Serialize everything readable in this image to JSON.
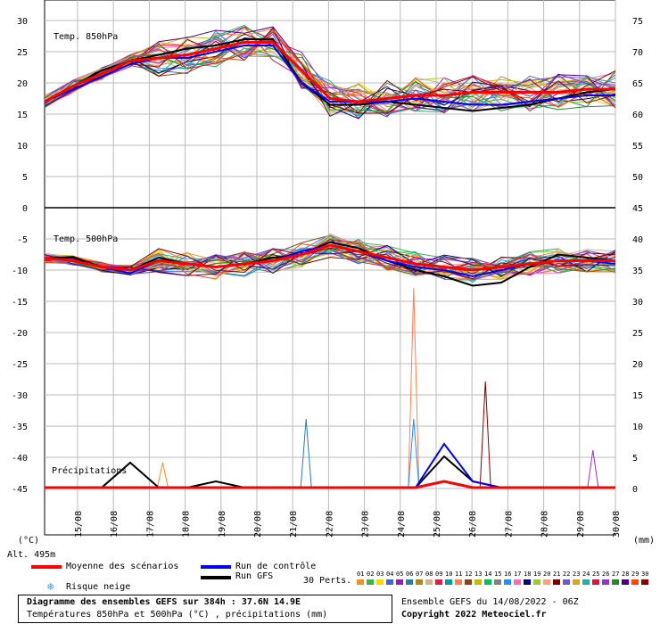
{
  "chart_data": {
    "type": "line",
    "title": "Diagramme des ensembles GEFS sur 384h : 37.6N 14.9E",
    "subtitle": "Températures 850hPa et 500hPa (°C) , précipitations (mm)",
    "x_labels": [
      "15/08",
      "16/08",
      "17/08",
      "18/08",
      "19/08",
      "20/08",
      "21/08",
      "22/08",
      "23/08",
      "24/08",
      "25/08",
      "26/08",
      "27/08",
      "28/08",
      "29/08",
      "30/08"
    ],
    "left_axis": {
      "unit": "(°C)",
      "ticks": [
        30,
        25,
        20,
        15,
        10,
        5,
        0,
        -5,
        -10,
        -15,
        -20,
        -25,
        -30,
        -35,
        -40,
        -45
      ]
    },
    "right_axis": {
      "unit": "(mm)",
      "ticks_upper": [
        75,
        70,
        65,
        60,
        55,
        50
      ],
      "ticks_lower": [
        45,
        40,
        35,
        30,
        25,
        20,
        15,
        10,
        5,
        0
      ]
    },
    "panel_labels": {
      "t850": "Temp. 850hPa",
      "t500": "Temp. 500hPa",
      "precip": "Précipitations"
    },
    "grid": true,
    "series": [
      {
        "name": "Moyenne des scénarios",
        "color": "#ff0000",
        "t850": [
          17,
          19.5,
          21.5,
          23.5,
          24,
          24.5,
          25.5,
          26.5,
          26.5,
          22,
          17.5,
          17,
          17.5,
          18,
          18,
          18.5,
          18.5,
          18.5,
          18.5,
          19,
          19
        ],
        "t500": [
          -8,
          -8.5,
          -9.5,
          -10,
          -8.5,
          -9,
          -9.5,
          -9,
          -8.5,
          -7.5,
          -6,
          -7,
          -8,
          -9,
          -9.5,
          -10,
          -9.5,
          -9,
          -8.5,
          -8.5,
          -8.5
        ],
        "precip": [
          0,
          0,
          0,
          0,
          0,
          0,
          0,
          0,
          0,
          0,
          0,
          0,
          0,
          0,
          1,
          0,
          0,
          0,
          0,
          0,
          0
        ]
      },
      {
        "name": "Run de contrôle",
        "color": "#0000ff",
        "t850": [
          17,
          19,
          21,
          23,
          24,
          24,
          25,
          26,
          26,
          20,
          17,
          17,
          17,
          17.5,
          17,
          16.5,
          16.5,
          17,
          17.5,
          18,
          18
        ],
        "t500": [
          -8,
          -8.5,
          -9.5,
          -10.5,
          -8.5,
          -9,
          -9.5,
          -9,
          -8.5,
          -7,
          -6,
          -7,
          -8.5,
          -9.5,
          -10,
          -11,
          -10,
          -9,
          -8.5,
          -8.5,
          -9
        ],
        "precip": [
          0,
          0,
          0,
          0,
          0,
          0,
          0,
          0,
          0,
          0,
          0,
          0,
          0,
          0,
          7,
          1,
          0,
          0,
          0,
          0,
          0
        ]
      },
      {
        "name": "Run GFS",
        "color": "#000000",
        "t850": [
          17,
          19.5,
          22,
          23.5,
          24.5,
          25.5,
          26,
          27,
          27,
          20,
          16.5,
          16.5,
          17,
          16.5,
          16,
          15.5,
          16,
          16.5,
          17.5,
          18.5,
          19
        ],
        "t500": [
          -8,
          -8,
          -9.5,
          -10,
          -8,
          -9,
          -9.5,
          -9,
          -8,
          -7.5,
          -5.5,
          -6.5,
          -8.5,
          -10,
          -11,
          -12.5,
          -12,
          -9.5,
          -7.5,
          -8,
          -8.5
        ],
        "precip": [
          0,
          0,
          0,
          4,
          0,
          0,
          1,
          0,
          0,
          0,
          0,
          0,
          0,
          0,
          5,
          1,
          0,
          0,
          0,
          0,
          0
        ]
      }
    ],
    "precip_peaks": [
      {
        "date": "17/08",
        "value": 4
      },
      {
        "date": "21/08",
        "value": 11
      },
      {
        "date": "24/08",
        "value": 32
      },
      {
        "date": "24/08",
        "value": 11
      },
      {
        "date": "26/08",
        "value": 17
      },
      {
        "date": "29/08",
        "value": 6
      }
    ]
  },
  "footer": {
    "alt": "Alt. 495m",
    "legend_mean": "Moyenne des scénarios",
    "legend_control": "Run de contrôle",
    "legend_gfs": "Run GFS",
    "legend_snow": "Risque neige",
    "perts_label": "30 Perts.",
    "pert_numbers": [
      "01",
      "02",
      "03",
      "04",
      "05",
      "06",
      "07",
      "08",
      "09",
      "10",
      "11",
      "12",
      "13",
      "14",
      "15",
      "16",
      "17",
      "18",
      "19",
      "20",
      "21",
      "22",
      "23",
      "24",
      "25",
      "26",
      "27",
      "28",
      "29",
      "30"
    ],
    "pert_colors": [
      "#ff8c1a",
      "#3cb44b",
      "#ffd700",
      "#4363d8",
      "#911eb4",
      "#2a7fa0",
      "#b8860b",
      "#d2b48c",
      "#e6194b",
      "#00a0a0",
      "#ff7f50",
      "#8b4513",
      "#bfbf00",
      "#00c060",
      "#808080",
      "#1e90ff",
      "#ff69b4",
      "#000080",
      "#9acd32",
      "#ffa07a",
      "#800000",
      "#6a5acd",
      "#daa520",
      "#20b2aa",
      "#dc143c",
      "#9932cc",
      "#228b22",
      "#4b0082",
      "#ff4500",
      "#8b0000"
    ],
    "run_info": "Ensemble GEFS du 14/08/2022 - 06Z",
    "copyright": "Copyright 2022 Meteociel.fr",
    "snow_icon": "snowflake-icon"
  }
}
